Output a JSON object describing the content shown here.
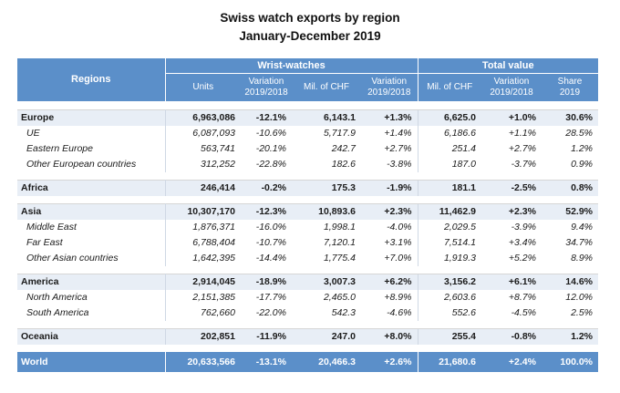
{
  "title": "Swiss watch exports by region",
  "subtitle": "January-December 2019",
  "header": {
    "regions": "Regions",
    "group_wrist": "Wrist-watches",
    "group_total": "Total value",
    "units": "Units",
    "variation1": "Variation",
    "variation1_sub": "2019/2018",
    "mil_chf1": "Mil. of CHF",
    "variation2": "Variation",
    "variation2_sub": "2019/2018",
    "mil_chf2": "Mil. of CHF",
    "variation3": "Variation",
    "variation3_sub": "2019/2018",
    "share": "Share",
    "share_sub": "2019"
  },
  "rows": [
    {
      "region": "Europe",
      "units": "6,963,086",
      "var_units": "-12.1%",
      "chf": "6,143.1",
      "var_chf": "+1.3%",
      "total": "6,625.0",
      "var_total": "+1.0%",
      "share": "30.6%"
    },
    {
      "region": "UE",
      "units": "6,087,093",
      "var_units": "-10.6%",
      "chf": "5,717.9",
      "var_chf": "+1.4%",
      "total": "6,186.6",
      "var_total": "+1.1%",
      "share": "28.5%"
    },
    {
      "region": "Eastern Europe",
      "units": "563,741",
      "var_units": "-20.1%",
      "chf": "242.7",
      "var_chf": "+2.7%",
      "total": "251.4",
      "var_total": "+2.7%",
      "share": "1.2%"
    },
    {
      "region": "Other European countries",
      "units": "312,252",
      "var_units": "-22.8%",
      "chf": "182.6",
      "var_chf": "-3.8%",
      "total": "187.0",
      "var_total": "-3.7%",
      "share": "0.9%"
    },
    {
      "region": "Africa",
      "units": "246,414",
      "var_units": "-0.2%",
      "chf": "175.3",
      "var_chf": "-1.9%",
      "total": "181.1",
      "var_total": "-2.5%",
      "share": "0.8%"
    },
    {
      "region": "Asia",
      "units": "10,307,170",
      "var_units": "-12.3%",
      "chf": "10,893.6",
      "var_chf": "+2.3%",
      "total": "11,462.9",
      "var_total": "+2.3%",
      "share": "52.9%"
    },
    {
      "region": "Middle East",
      "units": "1,876,371",
      "var_units": "-16.0%",
      "chf": "1,998.1",
      "var_chf": "-4.0%",
      "total": "2,029.5",
      "var_total": "-3.9%",
      "share": "9.4%"
    },
    {
      "region": "Far East",
      "units": "6,788,404",
      "var_units": "-10.7%",
      "chf": "7,120.1",
      "var_chf": "+3.1%",
      "total": "7,514.1",
      "var_total": "+3.4%",
      "share": "34.7%"
    },
    {
      "region": "Other Asian countries",
      "units": "1,642,395",
      "var_units": "-14.4%",
      "chf": "1,775.4",
      "var_chf": "+7.0%",
      "total": "1,919.3",
      "var_total": "+5.2%",
      "share": "8.9%"
    },
    {
      "region": "America",
      "units": "2,914,045",
      "var_units": "-18.9%",
      "chf": "3,007.3",
      "var_chf": "+6.2%",
      "total": "3,156.2",
      "var_total": "+6.1%",
      "share": "14.6%"
    },
    {
      "region": "North America",
      "units": "2,151,385",
      "var_units": "-17.7%",
      "chf": "2,465.0",
      "var_chf": "+8.9%",
      "total": "2,603.6",
      "var_total": "+8.7%",
      "share": "12.0%"
    },
    {
      "region": "South America",
      "units": "762,660",
      "var_units": "-22.0%",
      "chf": "542.3",
      "var_chf": "-4.6%",
      "total": "552.6",
      "var_total": "-4.5%",
      "share": "2.5%"
    },
    {
      "region": "Oceania",
      "units": "202,851",
      "var_units": "-11.9%",
      "chf": "247.0",
      "var_chf": "+8.0%",
      "total": "255.4",
      "var_total": "-0.8%",
      "share": "1.2%"
    },
    {
      "region": "World",
      "units": "20,633,566",
      "var_units": "-13.1%",
      "chf": "20,466.3",
      "var_chf": "+2.6%",
      "total": "21,680.6",
      "var_total": "+2.4%",
      "share": "100.0%"
    }
  ],
  "colors": {
    "header_bg": "#5b8fc9",
    "region_row_bg": "#e8eef6"
  }
}
